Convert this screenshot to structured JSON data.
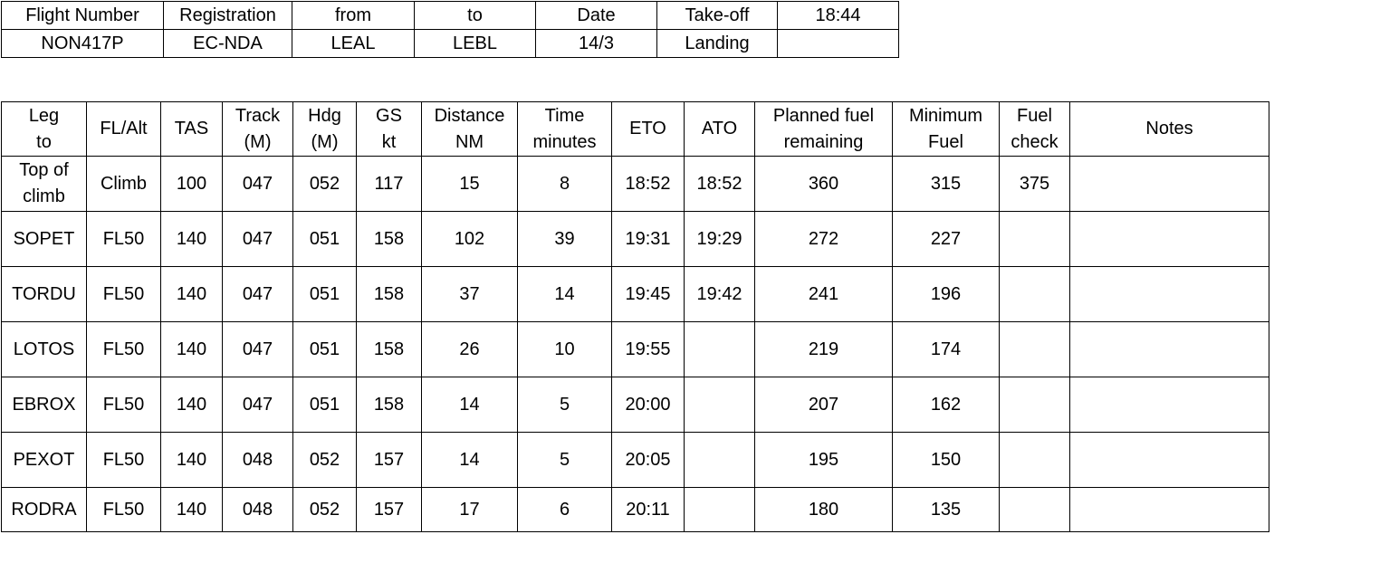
{
  "flight_info": {
    "row1": [
      {
        "value": "Flight Number"
      },
      {
        "value": "Registration"
      },
      {
        "value": "from"
      },
      {
        "value": "to"
      },
      {
        "value": "Date"
      },
      {
        "value": "Take-off"
      },
      {
        "value": "18:44"
      }
    ],
    "row2": [
      {
        "value": "NON417P"
      },
      {
        "value": "EC-NDA"
      },
      {
        "value": "LEAL"
      },
      {
        "value": "LEBL"
      },
      {
        "value": "14/3"
      },
      {
        "value": "Landing"
      },
      {
        "value": ""
      }
    ]
  },
  "nav_log": {
    "headers": [
      {
        "line1": "Leg",
        "line2": "to"
      },
      {
        "line1": "FL/Alt",
        "line2": ""
      },
      {
        "line1": "TAS",
        "line2": ""
      },
      {
        "line1": "Track",
        "line2": "(M)"
      },
      {
        "line1": "Hdg",
        "line2": "(M)"
      },
      {
        "line1": "GS",
        "line2": "kt"
      },
      {
        "line1": "Distance",
        "line2": "NM"
      },
      {
        "line1": "Time",
        "line2": "minutes"
      },
      {
        "line1": "ETO",
        "line2": ""
      },
      {
        "line1": "ATO",
        "line2": ""
      },
      {
        "line1": "Planned fuel",
        "line2": "remaining"
      },
      {
        "line1": "Minimum",
        "line2": "Fuel"
      },
      {
        "line1": "Fuel",
        "line2": "check"
      },
      {
        "line1": "Notes",
        "line2": ""
      }
    ],
    "rows": [
      {
        "leg": "Top of",
        "leg2": "climb",
        "fl": "Climb",
        "tas": "100",
        "track": "047",
        "hdg": "052",
        "gs": "117",
        "dist": "15",
        "time": "8",
        "eto": "18:52",
        "ato": "18:52",
        "planned_fuel": "360",
        "min_fuel": "315",
        "fuel_check": "375",
        "notes": ""
      },
      {
        "leg": "SOPET",
        "leg2": "",
        "fl": "FL50",
        "tas": "140",
        "track": "047",
        "hdg": "051",
        "gs": "158",
        "dist": "102",
        "time": "39",
        "eto": "19:31",
        "ato": "19:29",
        "planned_fuel": "272",
        "min_fuel": "227",
        "fuel_check": "",
        "notes": ""
      },
      {
        "leg": "TORDU",
        "leg2": "",
        "fl": "FL50",
        "tas": "140",
        "track": "047",
        "hdg": "051",
        "gs": "158",
        "dist": "37",
        "time": "14",
        "eto": "19:45",
        "ato": "19:42",
        "planned_fuel": "241",
        "min_fuel": "196",
        "fuel_check": "",
        "notes": ""
      },
      {
        "leg": "LOTOS",
        "leg2": "",
        "fl": "FL50",
        "tas": "140",
        "track": "047",
        "hdg": "051",
        "gs": "158",
        "dist": "26",
        "time": "10",
        "eto": "19:55",
        "ato": "",
        "planned_fuel": "219",
        "min_fuel": "174",
        "fuel_check": "",
        "notes": ""
      },
      {
        "leg": "EBROX",
        "leg2": "",
        "fl": "FL50",
        "tas": "140",
        "track": "047",
        "hdg": "051",
        "gs": "158",
        "dist": "14",
        "time": "5",
        "eto": "20:00",
        "ato": "",
        "planned_fuel": "207",
        "min_fuel": "162",
        "fuel_check": "",
        "notes": ""
      },
      {
        "leg": "PEXOT",
        "leg2": "",
        "fl": "FL50",
        "tas": "140",
        "track": "048",
        "hdg": "052",
        "gs": "157",
        "dist": "14",
        "time": "5",
        "eto": "20:05",
        "ato": "",
        "planned_fuel": "195",
        "min_fuel": "150",
        "fuel_check": "",
        "notes": ""
      },
      {
        "leg": "RODRA",
        "leg2": "",
        "fl": "FL50",
        "tas": "140",
        "track": "048",
        "hdg": "052",
        "gs": "157",
        "dist": "17",
        "time": "6",
        "eto": "20:11",
        "ato": "",
        "planned_fuel": "180",
        "min_fuel": "135",
        "fuel_check": "",
        "notes": ""
      }
    ]
  }
}
